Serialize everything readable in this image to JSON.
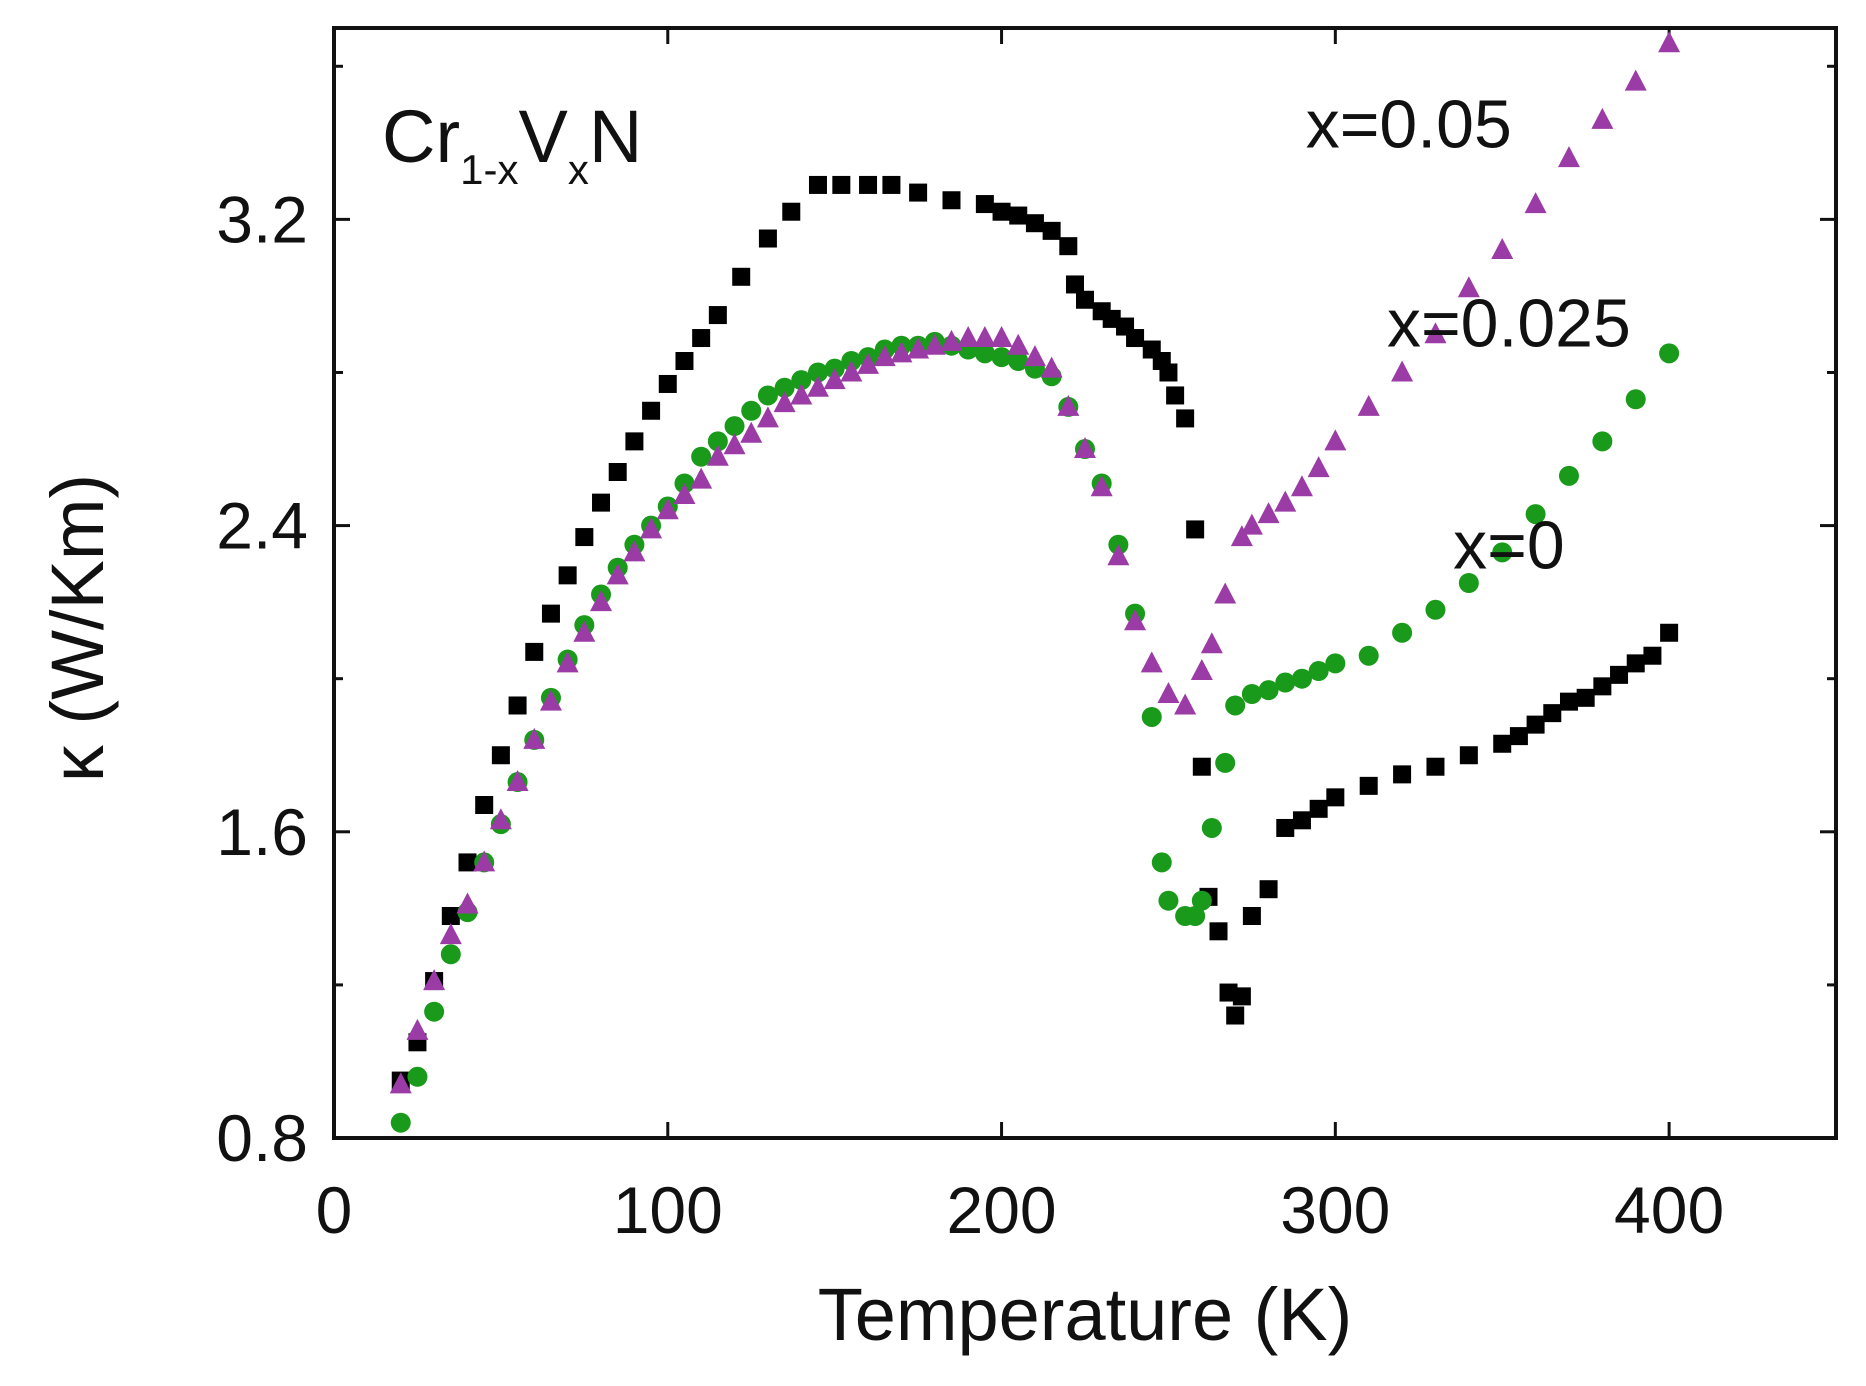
{
  "chart_data": {
    "type": "scatter",
    "title": "",
    "xlabel": "Temperature (K)",
    "ylabel": "κ (W/Km)",
    "xlim": [
      0,
      450
    ],
    "ylim": [
      0.8,
      3.7
    ],
    "xticks": [
      0,
      100,
      200,
      300,
      400
    ],
    "xtick_labels": [
      "0",
      "100",
      "200",
      "300",
      "400"
    ],
    "yticks": [
      0.8,
      1.6,
      2.4,
      3.2
    ],
    "ytick_labels": [
      "0.8",
      "1.6",
      "2.4",
      "3.2"
    ],
    "minor_yticks": [
      1.2,
      2.0,
      2.8,
      3.6
    ],
    "grid": false,
    "annotation": {
      "parts": [
        {
          "text": "Cr",
          "role": "base"
        },
        {
          "text": "1-x",
          "role": "sub"
        },
        {
          "text": "V",
          "role": "base"
        },
        {
          "text": "x",
          "role": "sub"
        },
        {
          "text": "N",
          "role": "base"
        }
      ]
    },
    "series": [
      {
        "name": "x=0",
        "marker": "square",
        "color": "#000000",
        "label_x": 352,
        "label_y": 2.35,
        "x": [
          20,
          25,
          30,
          35,
          40,
          45,
          50,
          55,
          60,
          65,
          70,
          75,
          80,
          85,
          90,
          95,
          100,
          105,
          110,
          115,
          122,
          130,
          137,
          145,
          152,
          160,
          167,
          175,
          185,
          195,
          200,
          205,
          210,
          215,
          220,
          222,
          225,
          230,
          233,
          237,
          240,
          245,
          248,
          250,
          252,
          255,
          258,
          260,
          262,
          265,
          268,
          270,
          272,
          275,
          280,
          285,
          290,
          295,
          300,
          310,
          320,
          330,
          340,
          350,
          355,
          360,
          365,
          370,
          375,
          380,
          385,
          390,
          395,
          400
        ],
        "y": [
          0.95,
          1.05,
          1.21,
          1.38,
          1.52,
          1.67,
          1.8,
          1.93,
          2.07,
          2.17,
          2.27,
          2.37,
          2.46,
          2.54,
          2.62,
          2.7,
          2.77,
          2.83,
          2.89,
          2.95,
          3.05,
          3.15,
          3.22,
          3.29,
          3.29,
          3.29,
          3.29,
          3.27,
          3.25,
          3.24,
          3.22,
          3.21,
          3.19,
          3.17,
          3.13,
          3.03,
          2.99,
          2.96,
          2.94,
          2.92,
          2.89,
          2.86,
          2.83,
          2.8,
          2.74,
          2.68,
          2.39,
          1.77,
          1.43,
          1.34,
          1.18,
          1.12,
          1.17,
          1.38,
          1.45,
          1.61,
          1.63,
          1.66,
          1.69,
          1.72,
          1.75,
          1.77,
          1.8,
          1.83,
          1.85,
          1.88,
          1.91,
          1.94,
          1.95,
          1.98,
          2.01,
          2.04,
          2.06,
          2.12
        ]
      },
      {
        "name": "x=0.025",
        "marker": "circle",
        "color": "#1a9a1a",
        "label_x": 352,
        "label_y": 2.93,
        "x": [
          20,
          25,
          30,
          35,
          40,
          45,
          50,
          55,
          60,
          65,
          70,
          75,
          80,
          85,
          90,
          95,
          100,
          105,
          110,
          115,
          120,
          125,
          130,
          135,
          140,
          145,
          150,
          155,
          160,
          165,
          170,
          175,
          180,
          185,
          190,
          195,
          200,
          205,
          210,
          215,
          220,
          225,
          230,
          235,
          240,
          245,
          248,
          250,
          255,
          258,
          260,
          263,
          267,
          270,
          275,
          280,
          285,
          290,
          295,
          300,
          310,
          320,
          330,
          340,
          350,
          360,
          370,
          380,
          390,
          400
        ],
        "y": [
          0.84,
          0.96,
          1.13,
          1.28,
          1.39,
          1.52,
          1.62,
          1.73,
          1.84,
          1.95,
          2.05,
          2.14,
          2.22,
          2.29,
          2.35,
          2.4,
          2.45,
          2.51,
          2.58,
          2.62,
          2.66,
          2.7,
          2.74,
          2.76,
          2.78,
          2.8,
          2.81,
          2.83,
          2.84,
          2.86,
          2.87,
          2.87,
          2.88,
          2.87,
          2.86,
          2.85,
          2.84,
          2.83,
          2.81,
          2.79,
          2.71,
          2.6,
          2.51,
          2.35,
          2.17,
          1.9,
          1.52,
          1.42,
          1.38,
          1.38,
          1.42,
          1.61,
          1.78,
          1.93,
          1.96,
          1.97,
          1.99,
          2.0,
          2.02,
          2.04,
          2.06,
          2.12,
          2.18,
          2.25,
          2.33,
          2.43,
          2.53,
          2.62,
          2.73,
          2.85
        ]
      },
      {
        "name": "x=0.05",
        "marker": "triangle",
        "color": "#9b3ba6",
        "label_x": 322,
        "label_y": 3.45,
        "x": [
          20,
          25,
          30,
          35,
          40,
          45,
          50,
          55,
          60,
          65,
          70,
          75,
          80,
          85,
          90,
          95,
          100,
          105,
          110,
          115,
          120,
          125,
          130,
          135,
          140,
          145,
          150,
          155,
          160,
          165,
          170,
          175,
          180,
          185,
          190,
          195,
          200,
          205,
          210,
          215,
          220,
          225,
          230,
          235,
          240,
          245,
          250,
          255,
          260,
          263,
          267,
          272,
          275,
          280,
          285,
          290,
          295,
          300,
          310,
          320,
          330,
          340,
          350,
          360,
          370,
          380,
          390,
          400
        ],
        "y": [
          0.94,
          1.08,
          1.21,
          1.33,
          1.41,
          1.52,
          1.63,
          1.73,
          1.84,
          1.94,
          2.04,
          2.12,
          2.2,
          2.27,
          2.33,
          2.39,
          2.44,
          2.48,
          2.52,
          2.58,
          2.61,
          2.64,
          2.68,
          2.72,
          2.74,
          2.76,
          2.78,
          2.8,
          2.82,
          2.84,
          2.85,
          2.86,
          2.87,
          2.88,
          2.89,
          2.89,
          2.89,
          2.87,
          2.84,
          2.81,
          2.71,
          2.6,
          2.5,
          2.32,
          2.15,
          2.04,
          1.96,
          1.93,
          2.02,
          2.09,
          2.22,
          2.37,
          2.4,
          2.43,
          2.46,
          2.5,
          2.55,
          2.62,
          2.71,
          2.8,
          2.9,
          3.02,
          3.12,
          3.24,
          3.36,
          3.46,
          3.56,
          3.66
        ]
      }
    ]
  }
}
